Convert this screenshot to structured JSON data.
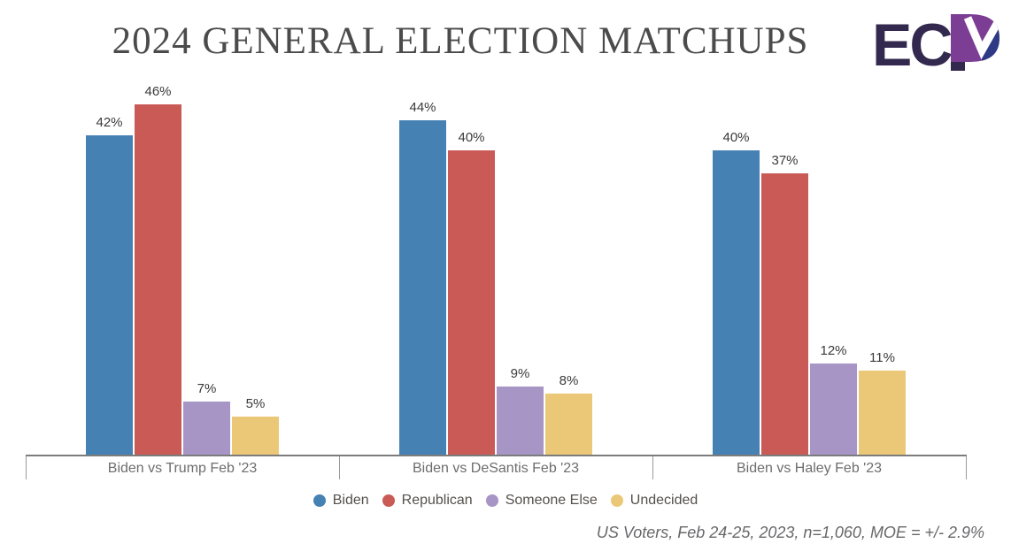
{
  "header": {
    "title": "2024 GENERAL ELECTION MATCHUPS",
    "logo_text": "ECP"
  },
  "chart_data": {
    "type": "bar",
    "title": "2024 GENERAL ELECTION MATCHUPS",
    "categories": [
      "Biden vs Trump Feb '23",
      "Biden vs DeSantis Feb '23",
      "Biden vs Haley Feb '23"
    ],
    "series": [
      {
        "name": "Biden",
        "color": "#4681B4",
        "values": [
          42,
          44,
          40
        ]
      },
      {
        "name": "Republican",
        "color": "#CA5A56",
        "values": [
          46,
          40,
          37
        ]
      },
      {
        "name": "Someone Else",
        "color": "#A795C6",
        "values": [
          7,
          9,
          12
        ]
      },
      {
        "name": "Undecided",
        "color": "#EAC878",
        "values": [
          5,
          8,
          11
        ]
      }
    ],
    "value_suffix": "%",
    "ylim": [
      0,
      50
    ],
    "grid": false,
    "legend_position": "bottom"
  },
  "footnote": "US Voters, Feb 24-25, 2023, n=1,060, MOE = +/- 2.9%",
  "logo_colors": {
    "letters": "#33294E",
    "purple": "#7B3E94",
    "blue": "#2F3A86"
  }
}
